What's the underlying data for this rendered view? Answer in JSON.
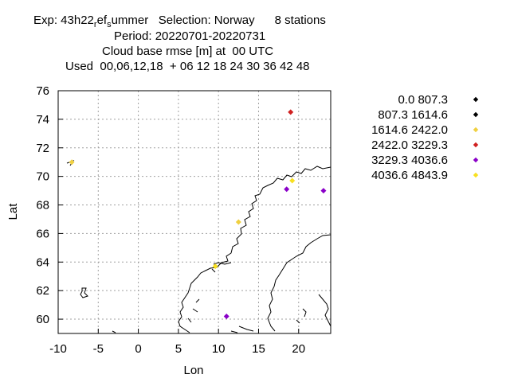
{
  "header": {
    "line1_prefix": "Exp: 43h22",
    "line1_sub1": "r",
    "line1_mid": "ef",
    "line1_sub2": "s",
    "line1_suffix": "ummer   Selection: Norway      8 stations",
    "line2": "Period: 20220701-20220731",
    "line3": "Cloud base rmse [m] at  00 UTC",
    "line4": "Used  00,06,12,18  + 06 12 18 24 30 36 42 48"
  },
  "chart_data": {
    "type": "scatter",
    "xlabel": "Lon",
    "ylabel": "Lat",
    "xlim": [
      -10,
      24
    ],
    "ylim": [
      59,
      76
    ],
    "xticks": [
      -10,
      -5,
      0,
      5,
      10,
      15,
      20
    ],
    "yticks": [
      60,
      62,
      64,
      66,
      68,
      70,
      72,
      74,
      76
    ],
    "grid": true,
    "legend_placement": "right",
    "legend": [
      {
        "label": "0.0 807.3",
        "color": "#000000"
      },
      {
        "label": "807.3 1614.6",
        "color": "#000000"
      },
      {
        "label": "1614.6 2422.0",
        "color": "#f0d040"
      },
      {
        "label": "2422.0 3229.3",
        "color": "#d02020"
      },
      {
        "label": "3229.3 4036.6",
        "color": "#8a00c8"
      },
      {
        "label": "4036.6 4843.9",
        "color": "#f8e020"
      }
    ],
    "points": [
      {
        "lon": -8.3,
        "lat": 71.0,
        "color": "#f0d040"
      },
      {
        "lon": 19.0,
        "lat": 74.5,
        "color": "#d02020"
      },
      {
        "lon": 18.5,
        "lat": 69.1,
        "color": "#8a00c8"
      },
      {
        "lon": 19.2,
        "lat": 69.7,
        "color": "#f8e020"
      },
      {
        "lon": 23.1,
        "lat": 69.0,
        "color": "#8a00c8"
      },
      {
        "lon": 12.5,
        "lat": 66.8,
        "color": "#f0d040"
      },
      {
        "lon": 9.6,
        "lat": 63.7,
        "color": "#f8e020"
      },
      {
        "lon": 11.0,
        "lat": 60.2,
        "color": "#8a00c8"
      }
    ]
  }
}
